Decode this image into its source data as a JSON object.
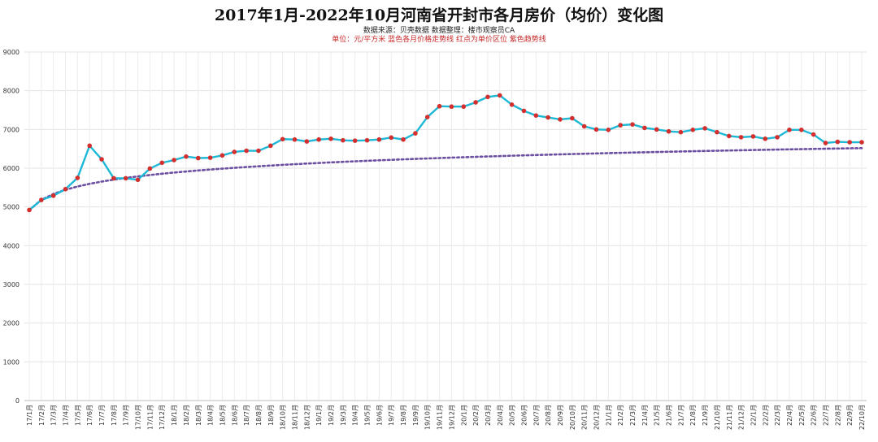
{
  "chart_data": {
    "type": "line",
    "title": "2017年1月-2022年10月河南省开封市各月房价（均价）变化图",
    "subtitle": "数据来源：贝壳数据    数据整理：楼市观察员CA",
    "note": "单位：元/平方米    蓝色各月价格走势线    红点为单价区位    紫色趋势线",
    "ylim": [
      0,
      9000
    ],
    "yticks": [
      0,
      1000,
      2000,
      3000,
      4000,
      5000,
      6000,
      7000,
      8000,
      9000
    ],
    "grid": true,
    "categories": [
      "17/1月",
      "17/2月",
      "17/3月",
      "17/4月",
      "17/5月",
      "17/6月",
      "17/7月",
      "17/8月",
      "17/9月",
      "17/10月",
      "17/11月",
      "17/12月",
      "18/1月",
      "18/2月",
      "18/3月",
      "18/4月",
      "18/5月",
      "18/6月",
      "18/7月",
      "18/8月",
      "18/9月",
      "18/10月",
      "18/11月",
      "18/12月",
      "19/1月",
      "19/2月",
      "19/3月",
      "19/4月",
      "19/5月",
      "19/6月",
      "19/7月",
      "19/8月",
      "19/9月",
      "19/10月",
      "19/11月",
      "19/12月",
      "20/1月",
      "20/2月",
      "20/3月",
      "20/4月",
      "20/5月",
      "20/6月",
      "20/7月",
      "20/8月",
      "20/9月",
      "20/10月",
      "20/11月",
      "20/12月",
      "21/1月",
      "21/2月",
      "21/3月",
      "21/4月",
      "21/5月",
      "21/6月",
      "21/7月",
      "21/8月",
      "21/9月",
      "21/10月",
      "21/11月",
      "21/12月",
      "22/1月",
      "22/2月",
      "22/3月",
      "22/4月",
      "22/5月",
      "22/6月",
      "22/7月",
      "22/8月",
      "22/9月",
      "22/10月"
    ],
    "series": [
      {
        "kind": "monthly",
        "color": "#1cb8d6",
        "marker_color": "#d32f2f",
        "values": [
          4920,
          5180,
          5290,
          5460,
          5750,
          6580,
          6230,
          5740,
          5740,
          5700,
          5990,
          6140,
          6210,
          6300,
          6260,
          6270,
          6330,
          6420,
          6450,
          6450,
          6580,
          6750,
          6740,
          6690,
          6740,
          6760,
          6720,
          6710,
          6720,
          6740,
          6790,
          6740,
          6900,
          7320,
          7600,
          7590,
          7590,
          7700,
          7840,
          7880,
          7640,
          7480,
          7360,
          7310,
          7260,
          7290,
          7080,
          7000,
          6990,
          7110,
          7130,
          7040,
          7000,
          6950,
          6930,
          6990,
          7030,
          6930,
          6830,
          6800,
          6820,
          6760,
          6800,
          6990,
          6990,
          6870,
          6650,
          6680,
          6670,
          6670
        ]
      },
      {
        "kind": "trend",
        "color": "#6b4fa0",
        "values": [
          4920,
          5181,
          5334,
          5443,
          5527,
          5596,
          5654,
          5704,
          5749,
          5788,
          5824,
          5857,
          5887,
          5915,
          5941,
          5965,
          5988,
          6009,
          6030,
          6049,
          6068,
          6086,
          6103,
          6119,
          6134,
          6149,
          6164,
          6178,
          6191,
          6204,
          6216,
          6228,
          6240,
          6251,
          6262,
          6273,
          6283,
          6293,
          6303,
          6312,
          6322,
          6331,
          6340,
          6348,
          6357,
          6365,
          6373,
          6381,
          6389,
          6396,
          6404,
          6411,
          6418,
          6425,
          6432,
          6438,
          6445,
          6451,
          6457,
          6463,
          6469,
          6475,
          6481,
          6487,
          6492,
          6498,
          6503,
          6508,
          6513,
          6518
        ]
      }
    ]
  }
}
